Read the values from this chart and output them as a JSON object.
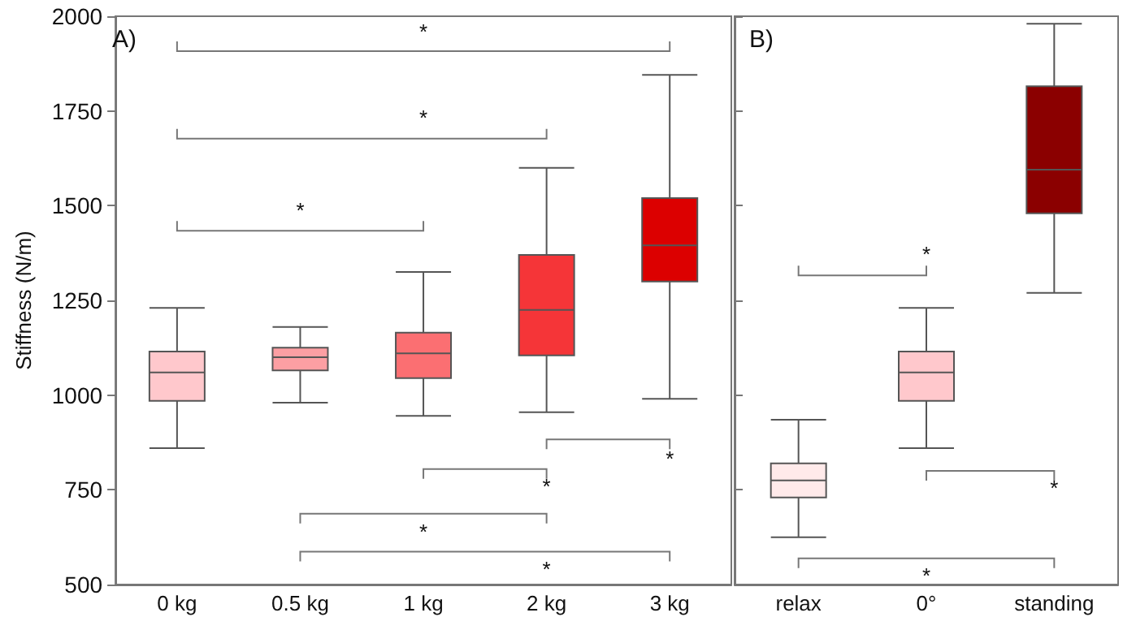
{
  "chart_data": [
    {
      "type": "box",
      "ylabel": "Stiffness (N/m)",
      "categories": [
        "0 kg",
        "0.5 kg",
        "1 kg",
        "2 kg",
        "3 kg"
      ],
      "boxes": [
        {
          "low": 860,
          "q1": 985,
          "median": 1060,
          "q3": 1115,
          "high": 1230
        },
        {
          "low": 980,
          "q1": 1065,
          "median": 1100,
          "q3": 1125,
          "high": 1180
        },
        {
          "low": 945,
          "q1": 1045,
          "median": 1110,
          "q3": 1165,
          "high": 1325
        },
        {
          "low": 955,
          "q1": 1105,
          "median": 1225,
          "q3": 1370,
          "high": 1600
        },
        {
          "low": 990,
          "q1": 1300,
          "median": 1395,
          "q3": 1520,
          "high": 1845
        }
      ],
      "colors": [
        "#ffc8cc",
        "#fc9fa3",
        "#fb6f72",
        "#f53538",
        "#dc0000"
      ],
      "ylim": [
        500,
        2000
      ],
      "yticks": [
        500,
        750,
        1000,
        1250,
        1500,
        1750,
        2000
      ],
      "grid": false,
      "annotations": [
        "A)",
        "*",
        "*",
        "*",
        "*",
        "*",
        "*",
        "*"
      ]
    },
    {
      "type": "box",
      "categories": [
        "relax",
        "0°",
        "standing"
      ],
      "boxes": [
        {
          "low": 625,
          "q1": 730,
          "median": 775,
          "q3": 820,
          "high": 935
        },
        {
          "low": 860,
          "q1": 985,
          "median": 1060,
          "q3": 1115,
          "high": 1230
        },
        {
          "low": 1270,
          "q1": 1480,
          "median": 1595,
          "q3": 1815,
          "high": 1980
        }
      ],
      "colors": [
        "#ffeaea",
        "#ffc8cc",
        "#8b0000"
      ],
      "ylim": [
        500,
        2000
      ],
      "yticks": [
        500,
        750,
        1000,
        1250,
        1500,
        1750,
        2000
      ],
      "grid": false,
      "tick_labels": "x",
      "annotations": [
        "B)",
        "*",
        "*",
        "*"
      ]
    }
  ]
}
